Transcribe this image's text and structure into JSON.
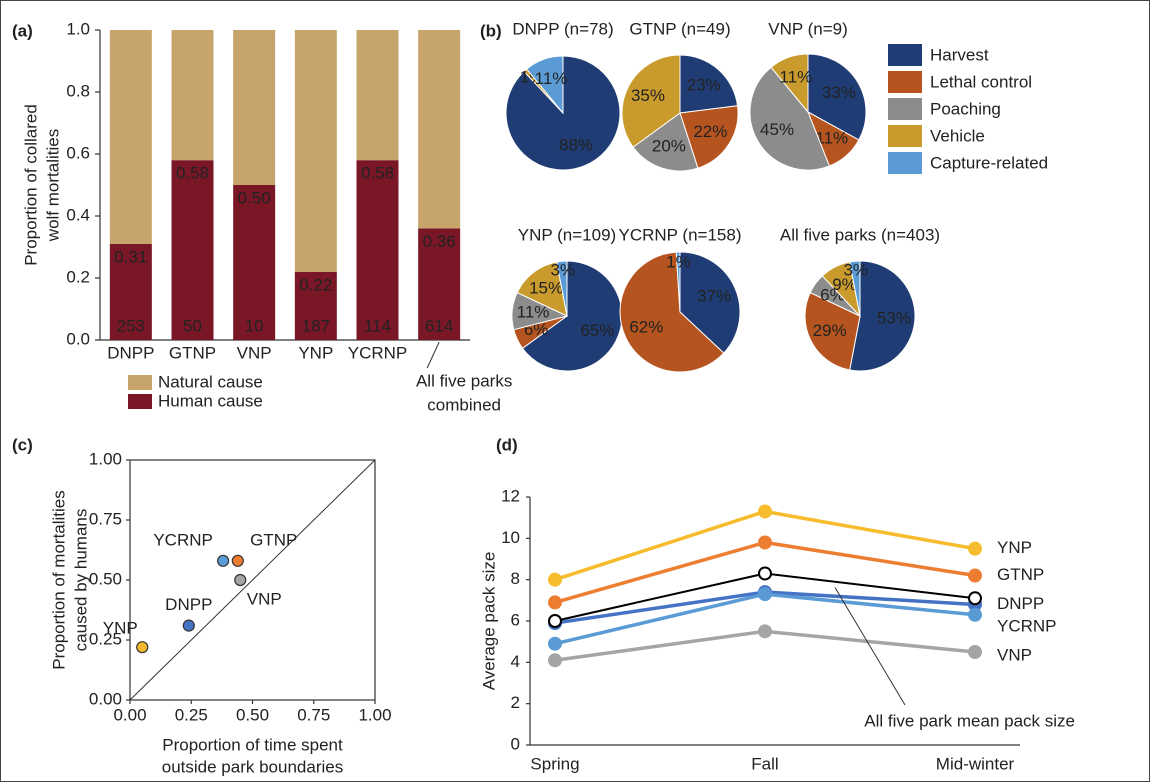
{
  "chart_data": [
    {
      "type": "stacked_bar",
      "panel_label": "(a)",
      "ylabel": [
        "Proportion of collared",
        "wolf mortalities"
      ],
      "categories": [
        "DNPP",
        "GTNP",
        "VNP",
        "YNP",
        "YCRNP",
        null
      ],
      "series": [
        {
          "name": "Human cause",
          "color": "#7a1727",
          "values": [
            0.31,
            0.58,
            0.5,
            0.22,
            0.58,
            0.36
          ],
          "value_labels": [
            "0.31",
            "0.58",
            "0.50",
            "0.22",
            "0.58",
            "0.36"
          ]
        },
        {
          "name": "Natural cause",
          "color": "#c6a46c",
          "values": [
            0.69,
            0.42,
            0.5,
            0.78,
            0.42,
            0.64
          ]
        }
      ],
      "sample_sizes": [
        253,
        50,
        10,
        187,
        114,
        614
      ],
      "annotation": [
        "All five parks",
        "combined"
      ],
      "ylim": [
        0,
        1
      ],
      "yticks": [
        {
          "value": 0,
          "label": "0.0"
        },
        0.2,
        0.4,
        0.6,
        0.8,
        {
          "value": 1,
          "label": "1.0"
        }
      ]
    },
    {
      "type": "pie",
      "panel_label": "(b)",
      "categories": [
        "Harvest",
        "Lethal control",
        "Poaching",
        "Vehicle",
        "Capture-related"
      ],
      "colors": [
        "#1f3d74",
        "#b6541f",
        "#8c8c8c",
        "#c99a2c",
        "#5b9bd5"
      ],
      "pies": [
        {
          "title": "DNPP (n=78)",
          "values": [
            88,
            0,
            0,
            1,
            11
          ],
          "value_labels": [
            "88%",
            null,
            null,
            "1%",
            "11%"
          ]
        },
        {
          "title": "GTNP (n=49)",
          "values": [
            23,
            22,
            20,
            35,
            0
          ],
          "value_labels": [
            "23%",
            "22%",
            "20%",
            "35%",
            null
          ]
        },
        {
          "title": "VNP (n=9)",
          "values": [
            33,
            11,
            45,
            11,
            0
          ],
          "value_labels": [
            "33%",
            "11%",
            "45%",
            "11%",
            null
          ]
        },
        {
          "title": "YNP (n=109)",
          "values": [
            65,
            6,
            11,
            15,
            3
          ],
          "value_labels": [
            "65%",
            "6%",
            "11%",
            "15%",
            "3%"
          ]
        },
        {
          "title": "YCRNP (n=158)",
          "values": [
            37,
            62,
            0,
            0,
            1
          ],
          "value_labels": [
            "37%",
            "62%",
            null,
            null,
            "1%"
          ]
        },
        {
          "title": "All five parks (n=403)",
          "values": [
            53,
            29,
            6,
            9,
            3
          ],
          "value_labels": [
            "53%",
            "29%",
            "6%",
            "9%",
            "3%"
          ]
        }
      ]
    },
    {
      "type": "scatter",
      "panel_label": "(c)",
      "xlabel": [
        "Proportion of time spent",
        "outside park boundaries"
      ],
      "ylabel": [
        "Proportion of mortalities",
        "caused by humans"
      ],
      "xlim": [
        0,
        1
      ],
      "ylim": [
        0,
        1
      ],
      "xticks": [
        {
          "value": 0,
          "label": "0.00"
        },
        0.25,
        {
          "value": 0.5,
          "label": "0.50"
        },
        0.75,
        {
          "value": 1,
          "label": "1.00"
        }
      ],
      "yticks": [
        {
          "value": 0,
          "label": "0.00"
        },
        0.25,
        {
          "value": 0.5,
          "label": "0.50"
        },
        0.75,
        {
          "value": 1,
          "label": "1.00"
        }
      ],
      "points": [
        {
          "name": "YNP",
          "color": "#f5b82e",
          "x": 0.05,
          "y": 0.22
        },
        {
          "name": "DNPP",
          "color": "#4472c4",
          "x": 0.24,
          "y": 0.31
        },
        {
          "name": "YCRNP",
          "color": "#5b9bd5",
          "x": 0.38,
          "y": 0.58
        },
        {
          "name": "GTNP",
          "color": "#ed7d31",
          "x": 0.44,
          "y": 0.58
        },
        {
          "name": "VNP",
          "color": "#a5a5a5",
          "x": 0.45,
          "y": 0.5
        }
      ]
    },
    {
      "type": "line",
      "panel_label": "(d)",
      "ylabel": "Average pack size",
      "categories": [
        "Spring",
        "Fall",
        "Mid-winter"
      ],
      "ylim": [
        0,
        12
      ],
      "yticks": [
        0,
        2,
        4,
        6,
        8,
        10,
        12
      ],
      "series": [
        {
          "name": "YNP",
          "color": "#f7bc2d",
          "values": [
            8.0,
            11.3,
            9.5
          ]
        },
        {
          "name": "GTNP",
          "color": "#ed7d31",
          "values": [
            6.9,
            9.8,
            8.2
          ]
        },
        {
          "name": "DNPP",
          "color": "#4472c4",
          "values": [
            5.9,
            7.4,
            6.8
          ]
        },
        {
          "name": "YCRNP",
          "color": "#5b9bd5",
          "values": [
            4.9,
            7.3,
            6.3
          ]
        },
        {
          "name": "VNP",
          "color": "#a5a5a5",
          "values": [
            4.1,
            5.5,
            4.5
          ]
        },
        {
          "name": "All five park mean pack size",
          "color": "#000000",
          "hollow": true,
          "values": [
            6.0,
            8.3,
            7.1
          ]
        }
      ]
    }
  ]
}
